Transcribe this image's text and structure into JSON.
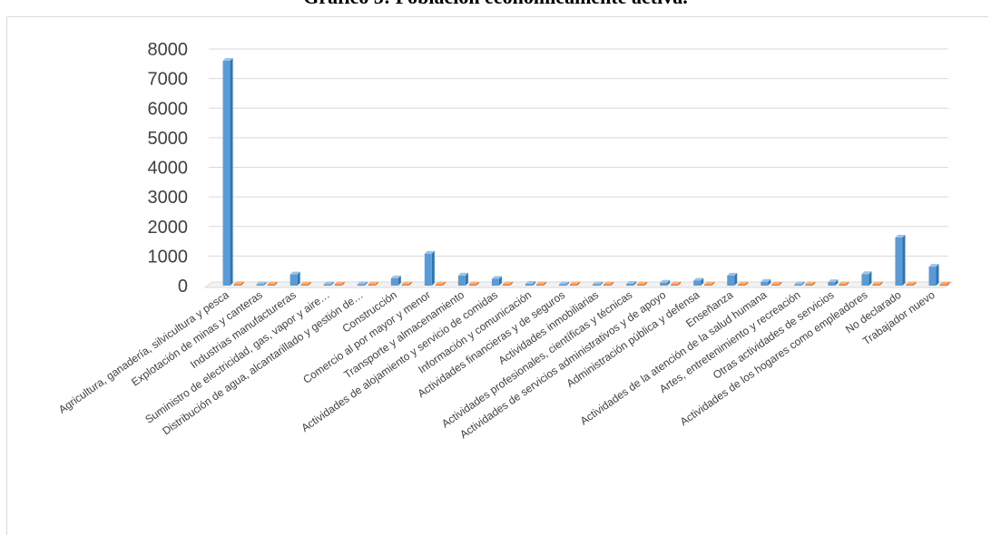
{
  "title": "Gráfico 5: Población económicamente activa.",
  "chart_data": {
    "type": "bar",
    "title": "Gráfico 5: Población económicamente activa.",
    "xlabel": "",
    "ylabel": "",
    "ylim": [
      0,
      8000
    ],
    "yticks": [
      0,
      1000,
      2000,
      3000,
      4000,
      5000,
      6000,
      7000,
      8000
    ],
    "grid": true,
    "legend": "none",
    "categories": [
      "Agricultura, ganadería, silvicultura y pesca",
      "Explotación de minas y canteras",
      "Industrias manufactureras",
      "Suministro de electricidad, gas, vapor y aire…",
      "Distribución de agua, alcantarillado y gestión de…",
      "Construcción",
      "Comercio al por mayor y menor",
      "Transporte y almacenamiento",
      "Actividades de alojamiento y servicio de comidas",
      "Información y comunicación",
      "Actividades financieras y de seguros",
      "Actividades inmobiliarias",
      "Actividades profesionales, científicas y técnicas",
      "Actividades de servicios administrativos y de apoyo",
      "Administración pública y defensa",
      "Enseñanza",
      "Actividades de la atención de la salud humana",
      "Artes, entretenimiento y recreación",
      "Otras actividades de servicios",
      "Actividades de los hogares como empleadores",
      "No declarado",
      "Trabajador nuevo"
    ],
    "series": [
      {
        "color": "#5b9bd5",
        "values": [
          7600,
          20,
          380,
          15,
          25,
          250,
          1080,
          340,
          230,
          60,
          15,
          20,
          60,
          100,
          170,
          340,
          130,
          30,
          120,
          390,
          1630,
          640
        ]
      },
      {
        "color": "#ed7d31",
        "values": [
          50,
          2,
          5,
          1,
          2,
          5,
          10,
          5,
          5,
          2,
          1,
          1,
          2,
          3,
          3,
          5,
          3,
          1,
          3,
          5,
          15,
          8
        ]
      }
    ]
  }
}
